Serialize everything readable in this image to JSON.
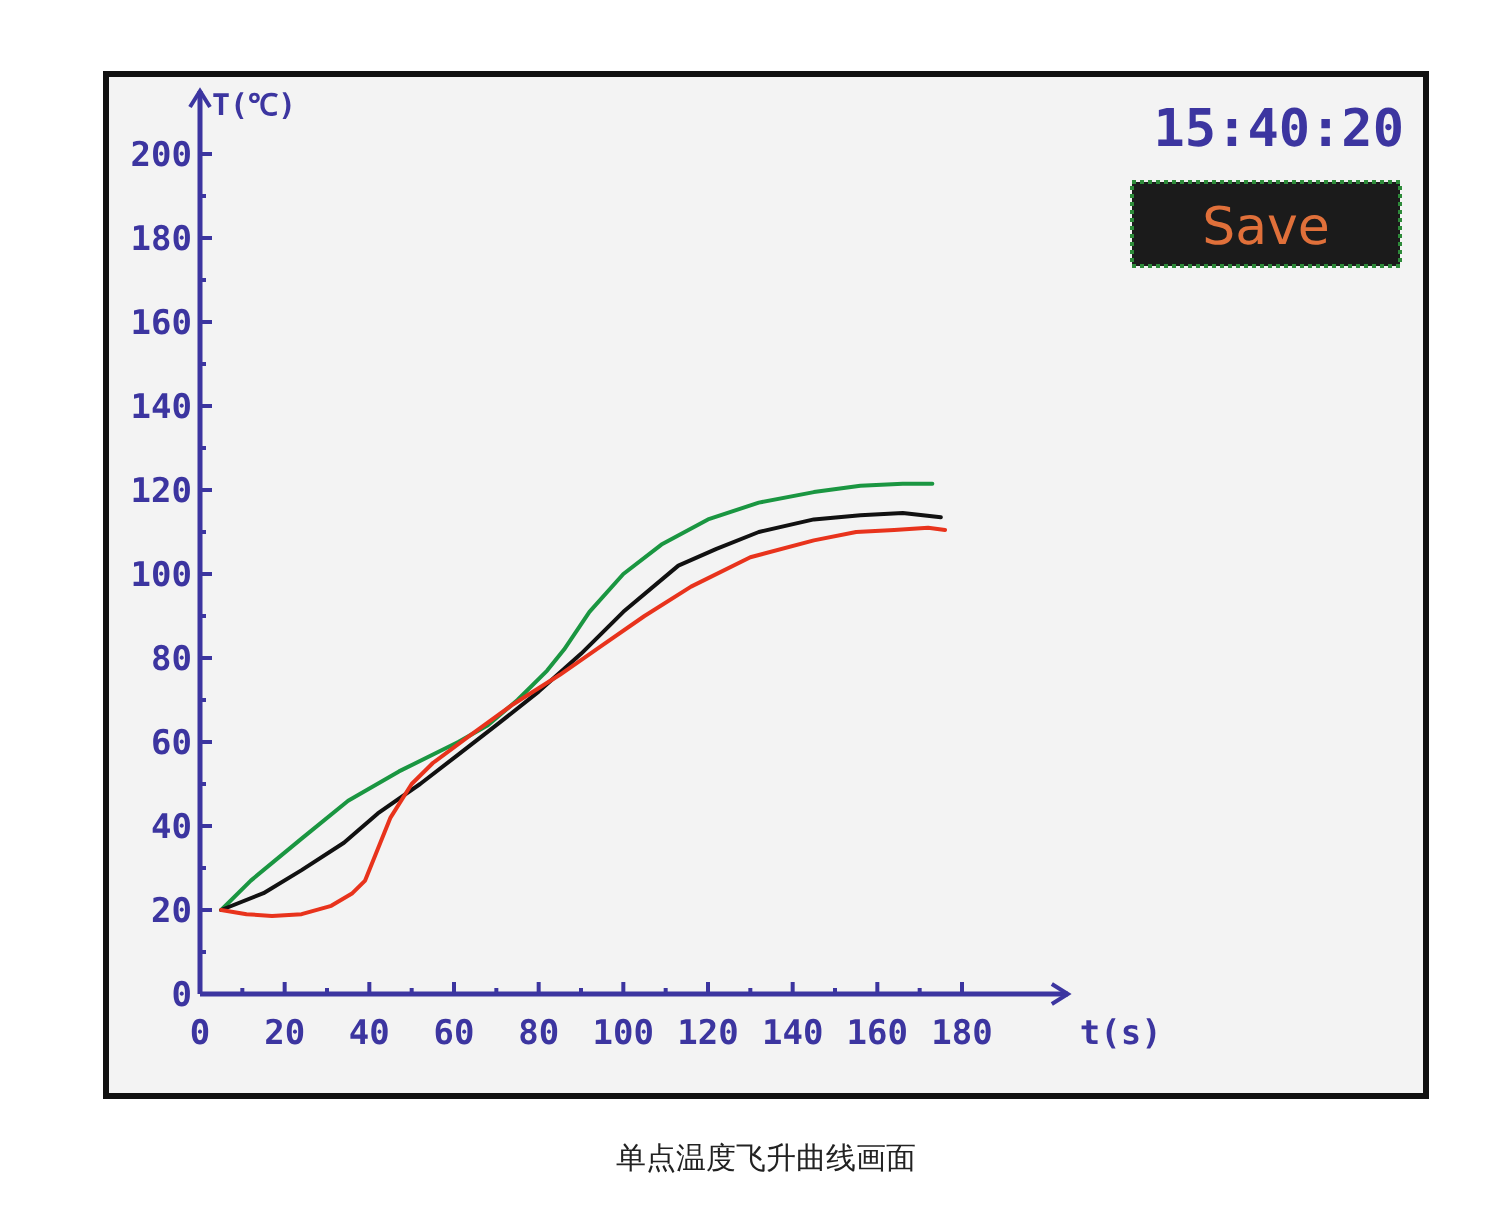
{
  "chart_data": {
    "type": "line",
    "title": "单点温度飞升曲线画面",
    "xlabel": "t(s)",
    "ylabel": "T(℃)",
    "annotations": [
      "15:40:20",
      "Save"
    ],
    "xlim": [
      0,
      205
    ],
    "ylim": [
      0,
      215
    ],
    "xticks": [
      0,
      {
        "value": 10,
        "label": null
      },
      20,
      {
        "value": 30,
        "label": null
      },
      40,
      {
        "value": 50,
        "label": null
      },
      60,
      {
        "value": 70,
        "label": null
      },
      80,
      {
        "value": 90,
        "label": null
      },
      100,
      {
        "value": 110,
        "label": null
      },
      120,
      {
        "value": 130,
        "label": null
      },
      140,
      {
        "value": 150,
        "label": null
      },
      160,
      {
        "value": 170,
        "label": null
      },
      180
    ],
    "yticks": [
      0,
      {
        "value": 10,
        "label": null
      },
      20,
      {
        "value": 30,
        "label": null
      },
      40,
      {
        "value": 50,
        "label": null
      },
      60,
      {
        "value": 70,
        "label": null
      },
      80,
      {
        "value": 90,
        "label": null
      },
      100,
      {
        "value": 110,
        "label": null
      },
      120,
      {
        "value": 130,
        "label": null
      },
      140,
      {
        "value": 150,
        "label": null
      },
      160,
      {
        "value": 170,
        "label": null
      },
      180,
      {
        "value": 190,
        "label": null
      },
      200
    ],
    "marker": "none",
    "line_style": "solid",
    "series": [
      {
        "color": "#1a9641",
        "x": [
          5,
          12,
          24,
          35,
          47,
          61,
          68,
          75,
          82,
          86,
          92,
          100,
          109,
          120,
          132,
          145,
          156,
          166,
          173
        ],
        "values": [
          20,
          27,
          37,
          46,
          53,
          60,
          64,
          70,
          77,
          82,
          91,
          100,
          107,
          113,
          117,
          119.5,
          121,
          121.5,
          121.5
        ]
      },
      {
        "color": "#111111",
        "x": [
          5,
          15,
          24,
          34,
          42,
          52,
          61,
          70,
          80,
          90,
          100,
          113,
          122,
          132,
          145,
          156,
          166,
          175
        ],
        "values": [
          20,
          24,
          29.5,
          36,
          43,
          50,
          57,
          64,
          72,
          81,
          91,
          102,
          106,
          110,
          113,
          114,
          114.5,
          113.5
        ]
      },
      {
        "color": "#e8331c",
        "x": [
          5,
          11,
          17,
          24,
          31,
          36,
          39,
          45,
          50,
          55,
          63,
          74,
          85,
          95,
          105,
          116,
          130,
          145,
          155,
          164,
          172,
          176
        ],
        "values": [
          20,
          19,
          18.6,
          19,
          21,
          24,
          27,
          42,
          50,
          55,
          61,
          69,
          76,
          83,
          90,
          97,
          104,
          108,
          110,
          110.5,
          111,
          110.5
        ]
      }
    ]
  }
}
